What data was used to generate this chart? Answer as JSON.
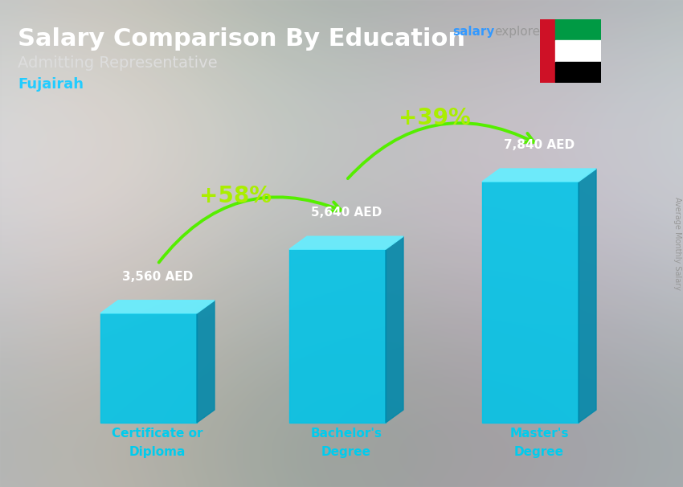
{
  "title": "Salary Comparison By Education",
  "subtitle": "Admitting Representative",
  "location": "Fujairah",
  "categories": [
    "Certificate or\nDiploma",
    "Bachelor's\nDegree",
    "Master's\nDegree"
  ],
  "values": [
    3560,
    5640,
    7840
  ],
  "value_labels": [
    "3,560 AED",
    "5,640 AED",
    "7,840 AED"
  ],
  "pct_changes": [
    "+58%",
    "+39%"
  ],
  "bar_color_face": "#00C4E8",
  "bar_color_light": "#55DDFF",
  "bar_color_side": "#0088AA",
  "bar_color_top": "#66EEFF",
  "title_color": "#FFFFFF",
  "subtitle_color": "#DDDDDD",
  "location_color": "#22CCFF",
  "pct_color": "#AAEE00",
  "arrow_color": "#55EE00",
  "xtick_color": "#00CCEE",
  "ylabel_text": "Average Monthly Salary",
  "watermark_salary_color": "#3399FF",
  "watermark_explorer_color": "#999999",
  "figsize": [
    8.5,
    6.06
  ],
  "dpi": 100
}
